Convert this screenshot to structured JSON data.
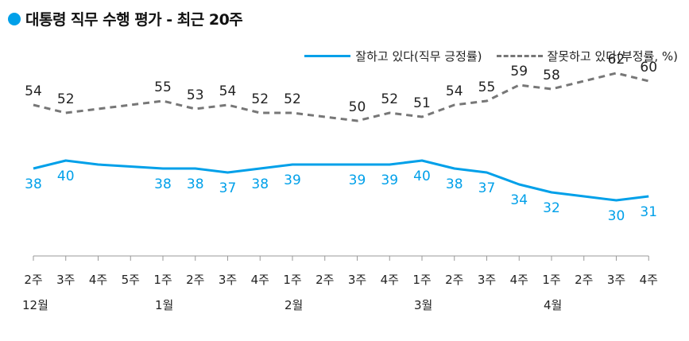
{
  "title": "대통령 직무 수행 평가 - 최근 20주",
  "chart_data": {
    "type": "line",
    "title": "대통령 직무 수행 평가 - 최근 20주",
    "x": [
      "2주",
      "3주",
      "4주",
      "5주",
      "1주",
      "2주",
      "3주",
      "4주",
      "1주",
      "2주",
      "3주",
      "4주",
      "1주",
      "2주",
      "3주",
      "4주",
      "1주",
      "2주",
      "3주",
      "4주"
    ],
    "months": [
      {
        "label": "12월",
        "index": 0
      },
      {
        "label": "1월",
        "index": 4
      },
      {
        "label": "2월",
        "index": 8
      },
      {
        "label": "3월",
        "index": 12
      },
      {
        "label": "4월",
        "index": 16
      }
    ],
    "series": [
      {
        "name": "잘하고 있다(직무 긍정률)",
        "color": "#00a0e9",
        "style": "solid",
        "values": [
          38,
          40,
          39,
          38.5,
          38,
          38,
          37,
          38,
          39,
          39,
          39,
          39,
          40,
          38,
          37,
          34,
          32,
          31,
          30,
          31
        ],
        "labels": [
          "38",
          "40",
          null,
          null,
          "38",
          "38",
          "37",
          "38",
          "39",
          null,
          "39",
          "39",
          "40",
          "38",
          "37",
          "34",
          "32",
          null,
          "30",
          "31"
        ]
      },
      {
        "name": "잘못하고 있다(부정률, %)",
        "color": "#777777",
        "style": "dashed",
        "values": [
          54,
          52,
          53,
          54,
          55,
          53,
          54,
          52,
          52,
          51,
          50,
          52,
          51,
          54,
          55,
          59,
          58,
          60,
          62,
          60
        ],
        "labels": [
          "54",
          "52",
          null,
          null,
          "55",
          "53",
          "54",
          "52",
          "52",
          null,
          "50",
          "52",
          "51",
          "54",
          "55",
          "59",
          "58",
          null,
          "62",
          "60"
        ]
      }
    ],
    "grid": false,
    "legend": "top-right"
  }
}
